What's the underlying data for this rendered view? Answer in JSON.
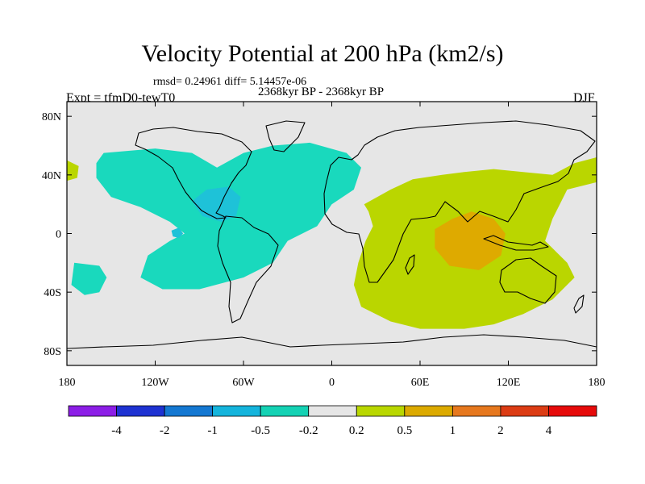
{
  "chart_data": {
    "type": "map",
    "title": "Velocity Potential at 200 hPa (km2/s)",
    "stats_text": "rmsd= 0.24961 diff= 5.14457e-06",
    "period_text": "2368kyr BP - 2368kyr BP",
    "experiment_text": "Expt = tfmD0-tewT0",
    "season": "DJF",
    "x_range": [
      -180,
      180
    ],
    "y_range": [
      -90,
      90
    ],
    "x_ticks": [
      {
        "value": -180,
        "label": "180"
      },
      {
        "value": -120,
        "label": "120W"
      },
      {
        "value": -60,
        "label": "60W"
      },
      {
        "value": 0,
        "label": "0"
      },
      {
        "value": 60,
        "label": "60E"
      },
      {
        "value": 120,
        "label": "120E"
      },
      {
        "value": 180,
        "label": "180"
      }
    ],
    "y_ticks": [
      {
        "value": 80,
        "label": "80N"
      },
      {
        "value": 40,
        "label": "40N"
      },
      {
        "value": 0,
        "label": "0"
      },
      {
        "value": -40,
        "label": "40S"
      },
      {
        "value": -80,
        "label": "80S"
      }
    ],
    "colorbar": {
      "labels": [
        "-4",
        "-2",
        "-1",
        "-0.5",
        "-0.2",
        "0.2",
        "0.5",
        "1",
        "2",
        "4"
      ],
      "colors": [
        "#8c1ee6",
        "#1e32d2",
        "#1478d2",
        "#14b4dc",
        "#14d2b4",
        "#e6e6e6",
        "#b9d700",
        "#dcaa00",
        "#e6781e",
        "#dc3c14",
        "#e60a0a"
      ]
    },
    "regions": [
      {
        "name": "negative-region-atlantic",
        "level": "-0.5 to -0.2",
        "color": "#19d9bd",
        "points": [
          [
            -155,
            55
          ],
          [
            -120,
            58
          ],
          [
            -95,
            55
          ],
          [
            -78,
            45
          ],
          [
            -60,
            55
          ],
          [
            -40,
            60
          ],
          [
            -15,
            62
          ],
          [
            10,
            55
          ],
          [
            20,
            45
          ],
          [
            15,
            30
          ],
          [
            0,
            20
          ],
          [
            -10,
            5
          ],
          [
            -30,
            -5
          ],
          [
            -40,
            -20
          ],
          [
            -60,
            -30
          ],
          [
            -90,
            -38
          ],
          [
            -115,
            -38
          ],
          [
            -130,
            -30
          ],
          [
            -125,
            -15
          ],
          [
            -110,
            -5
          ],
          [
            -100,
            0
          ],
          [
            -110,
            8
          ],
          [
            -130,
            18
          ],
          [
            -150,
            25
          ],
          [
            -160,
            38
          ],
          [
            -160,
            48
          ]
        ]
      },
      {
        "name": "negative-region-southwest-pacific",
        "level": "-0.5 to -0.2",
        "color": "#19d9bd",
        "points": [
          [
            -175,
            -20
          ],
          [
            -158,
            -22
          ],
          [
            -153,
            -30
          ],
          [
            -158,
            -40
          ],
          [
            -168,
            -42
          ],
          [
            -177,
            -35
          ]
        ]
      },
      {
        "name": "negative-region-caribbean-core",
        "level": "-1 to -0.5",
        "color": "#1ec2d8",
        "points": [
          [
            -95,
            22
          ],
          [
            -85,
            30
          ],
          [
            -70,
            32
          ],
          [
            -62,
            25
          ],
          [
            -65,
            12
          ],
          [
            -75,
            8
          ],
          [
            -88,
            12
          ]
        ]
      },
      {
        "name": "negative-region-small-core",
        "level": "-1 to -0.5",
        "color": "#1ec2d8",
        "points": [
          [
            -109,
            2
          ],
          [
            -104,
            4
          ],
          [
            -101,
            0
          ],
          [
            -104,
            -3
          ],
          [
            -108,
            -2
          ]
        ]
      },
      {
        "name": "positive-region-indo-pacific",
        "level": "0.2 to 0.5",
        "color": "#bad600",
        "points": [
          [
            22,
            20
          ],
          [
            40,
            30
          ],
          [
            55,
            37
          ],
          [
            75,
            40
          ],
          [
            90,
            42
          ],
          [
            110,
            44
          ],
          [
            130,
            42
          ],
          [
            150,
            40
          ],
          [
            165,
            48
          ],
          [
            180,
            52
          ],
          [
            180,
            35
          ],
          [
            160,
            30
          ],
          [
            150,
            10
          ],
          [
            145,
            -5
          ],
          [
            160,
            -20
          ],
          [
            165,
            -30
          ],
          [
            150,
            -45
          ],
          [
            130,
            -55
          ],
          [
            110,
            -62
          ],
          [
            90,
            -65
          ],
          [
            60,
            -65
          ],
          [
            40,
            -60
          ],
          [
            20,
            -50
          ],
          [
            15,
            -35
          ],
          [
            18,
            -20
          ],
          [
            23,
            -5
          ],
          [
            28,
            5
          ],
          [
            25,
            15
          ]
        ]
      },
      {
        "name": "positive-region-dateline-sliver",
        "level": "0.2 to 0.5",
        "color": "#bad600",
        "points": [
          [
            -180,
            50
          ],
          [
            -172,
            46
          ],
          [
            -173,
            38
          ],
          [
            -180,
            36
          ]
        ]
      },
      {
        "name": "positive-region-indian-ocean-core",
        "level": "0.5 to 1",
        "color": "#deaa00",
        "points": [
          [
            70,
            3
          ],
          [
            82,
            10
          ],
          [
            95,
            15
          ],
          [
            110,
            10
          ],
          [
            118,
            0
          ],
          [
            115,
            -15
          ],
          [
            100,
            -25
          ],
          [
            80,
            -22
          ],
          [
            70,
            -10
          ]
        ]
      }
    ]
  }
}
